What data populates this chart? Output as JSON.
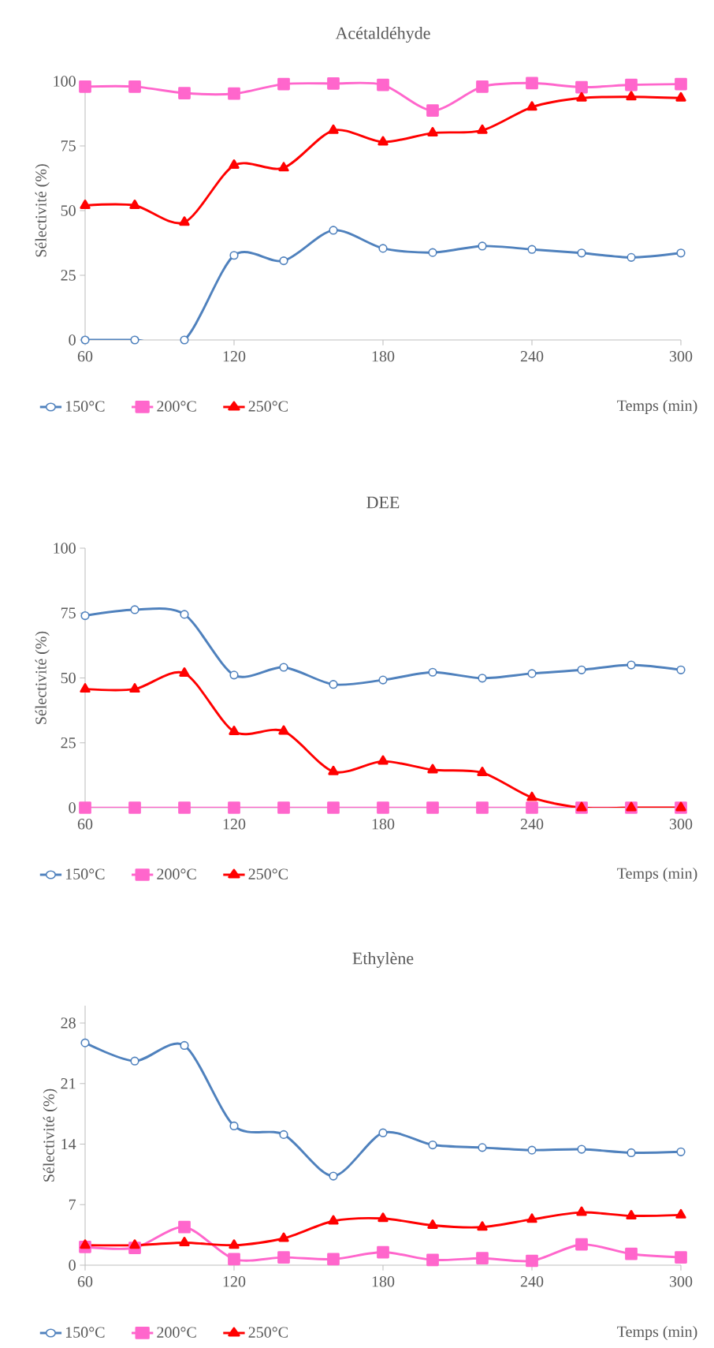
{
  "chart_data": [
    {
      "type": "line",
      "title": "Acétaldéhyde",
      "xlabel": "Temps (min)",
      "ylabel": "Sélectivité (%)",
      "x": [
        60,
        80,
        100,
        120,
        140,
        160,
        180,
        200,
        220,
        240,
        260,
        280,
        300
      ],
      "xlim": [
        60,
        300
      ],
      "xticks": [
        60,
        120,
        180,
        240,
        300
      ],
      "ylim": [
        0,
        100
      ],
      "yticks": [
        0,
        25,
        50,
        75,
        100
      ],
      "legend": "bottom",
      "grid": false,
      "series": [
        {
          "name": "150°C",
          "color": "#4f81bd",
          "marker": "circle",
          "values": [
            0,
            0,
            0,
            32.7,
            30.6,
            42.4,
            35.4,
            33.8,
            36.3,
            35.0,
            33.6,
            31.9,
            33.6
          ]
        },
        {
          "name": "200°C",
          "color": "#ff66cc",
          "marker": "square",
          "values": [
            97.9,
            97.9,
            95.4,
            95.2,
            98.9,
            99.1,
            98.6,
            88.7,
            97.9,
            99.3,
            97.7,
            98.6,
            98.9
          ]
        },
        {
          "name": "250°C",
          "color": "#ff0000",
          "marker": "triangle",
          "values": [
            52,
            52,
            45.5,
            67.5,
            66.5,
            81,
            76.5,
            80,
            81,
            90,
            93.5,
            94,
            93.5
          ]
        }
      ]
    },
    {
      "type": "line",
      "title": "DEE",
      "xlabel": "Temps (min)",
      "ylabel": "Sélectivité (%)",
      "x": [
        60,
        80,
        100,
        120,
        140,
        160,
        180,
        200,
        220,
        240,
        260,
        280,
        300
      ],
      "xlim": [
        60,
        300
      ],
      "xticks": [
        60,
        120,
        180,
        240,
        300
      ],
      "ylim": [
        0,
        100
      ],
      "yticks": [
        0,
        25,
        50,
        75,
        100
      ],
      "legend": "bottom",
      "grid": false,
      "series": [
        {
          "name": "150°C",
          "color": "#4f81bd",
          "marker": "circle",
          "values": [
            74,
            76.3,
            74.5,
            51.1,
            54.1,
            47.5,
            49.2,
            52.2,
            49.9,
            51.7,
            53.1,
            55,
            53.1
          ]
        },
        {
          "name": "200°C",
          "color": "#ff66cc",
          "marker": "square",
          "values": [
            0,
            0,
            0,
            0,
            0,
            0,
            0,
            0,
            0,
            0,
            0,
            0,
            0
          ]
        },
        {
          "name": "250°C",
          "color": "#ff0000",
          "marker": "triangle",
          "values": [
            45.7,
            45.7,
            51.8,
            29.3,
            29.5,
            13.9,
            17.9,
            14.6,
            13.5,
            3.9,
            0,
            0,
            0
          ]
        }
      ]
    },
    {
      "type": "line",
      "title": "Ethylène",
      "xlabel": "Temps (min)",
      "ylabel": "Sélectivité (%)",
      "x": [
        60,
        80,
        100,
        120,
        140,
        160,
        180,
        200,
        220,
        240,
        260,
        280,
        300
      ],
      "xlim": [
        60,
        300
      ],
      "xticks": [
        60,
        120,
        180,
        240,
        300
      ],
      "ylim": [
        0,
        30
      ],
      "yticks": [
        0,
        7,
        14,
        21,
        28
      ],
      "legend": "bottom",
      "grid": false,
      "series": [
        {
          "name": "150°C",
          "color": "#4f81bd",
          "marker": "circle",
          "values": [
            25.7,
            23.6,
            25.4,
            16.1,
            15.1,
            10.3,
            15.3,
            13.9,
            13.6,
            13.3,
            13.4,
            13.0,
            13.1
          ]
        },
        {
          "name": "200°C",
          "color": "#ff66cc",
          "marker": "square",
          "values": [
            2.1,
            2.0,
            4.4,
            0.7,
            0.9,
            0.7,
            1.5,
            0.6,
            0.8,
            0.5,
            2.4,
            1.3,
            0.9
          ]
        },
        {
          "name": "250°C",
          "color": "#ff0000",
          "marker": "triangle",
          "values": [
            2.3,
            2.3,
            2.6,
            2.3,
            3.1,
            5.1,
            5.4,
            4.6,
            4.4,
            5.3,
            6.1,
            5.7,
            5.8
          ]
        }
      ]
    }
  ]
}
